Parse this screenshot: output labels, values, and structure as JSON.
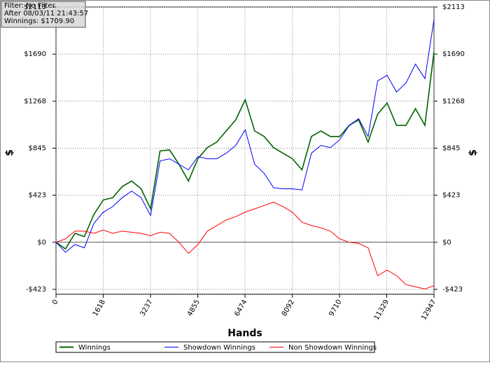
{
  "chart_data": {
    "type": "line",
    "info": [
      "Filter: No Filter",
      "After 08/03/11 21:43:57",
      "Winnings: $1709.90"
    ],
    "xlabel": "Hands",
    "ylabel": "$",
    "x": [
      0,
      324,
      648,
      972,
      1296,
      1620,
      1944,
      2268,
      2592,
      2916,
      3240,
      3564,
      3888,
      4212,
      4536,
      4860,
      5184,
      5508,
      5832,
      6156,
      6480,
      6804,
      7128,
      7452,
      7776,
      8100,
      8424,
      8748,
      9072,
      9396,
      9720,
      10044,
      10368,
      10692,
      11016,
      11340,
      11664,
      11988,
      12312,
      12636,
      12947
    ],
    "series": [
      {
        "name": "Winnings",
        "color": "#006400",
        "values": [
          0,
          -60,
          80,
          50,
          250,
          380,
          400,
          500,
          550,
          480,
          300,
          820,
          830,
          700,
          550,
          750,
          850,
          900,
          1000,
          1100,
          1280,
          1000,
          950,
          850,
          800,
          750,
          650,
          950,
          1000,
          950,
          950,
          1050,
          1100,
          900,
          1150,
          1250,
          1050,
          1050,
          1200,
          1050,
          1710
        ]
      },
      {
        "name": "Showdown Winnings",
        "color": "#0000ff",
        "values": [
          0,
          -90,
          -20,
          -50,
          170,
          270,
          320,
          400,
          460,
          400,
          240,
          730,
          750,
          700,
          650,
          770,
          750,
          750,
          800,
          870,
          1010,
          700,
          620,
          490,
          480,
          480,
          470,
          800,
          870,
          850,
          920,
          1050,
          1110,
          950,
          1450,
          1500,
          1350,
          1430,
          1600,
          1470,
          2000
        ]
      },
      {
        "name": "Non Showdown Winnings",
        "color": "#ff0000",
        "values": [
          0,
          30,
          100,
          100,
          80,
          110,
          80,
          100,
          90,
          80,
          60,
          90,
          80,
          0,
          -100,
          -20,
          100,
          150,
          200,
          230,
          270,
          300,
          330,
          360,
          320,
          270,
          180,
          150,
          130,
          100,
          30,
          0,
          -10,
          -50,
          -300,
          -250,
          -300,
          -380,
          -400,
          -420,
          -390
        ]
      }
    ],
    "xlim": [
      0,
      12947
    ],
    "xticks": [
      0,
      1618,
      3237,
      4855,
      6474,
      8092,
      9710,
      11329,
      12947
    ],
    "ylim": [
      -467,
      2113
    ],
    "yticks": [
      {
        "value": -423,
        "label": "-$423"
      },
      {
        "value": 0,
        "label": "$0"
      },
      {
        "value": 423,
        "label": "$423"
      },
      {
        "value": 845,
        "label": "$845"
      },
      {
        "value": 1268,
        "label": "$1268"
      },
      {
        "value": 1690,
        "label": "$1690"
      },
      {
        "value": 2113,
        "label": "$2113"
      }
    ],
    "grid": true
  }
}
